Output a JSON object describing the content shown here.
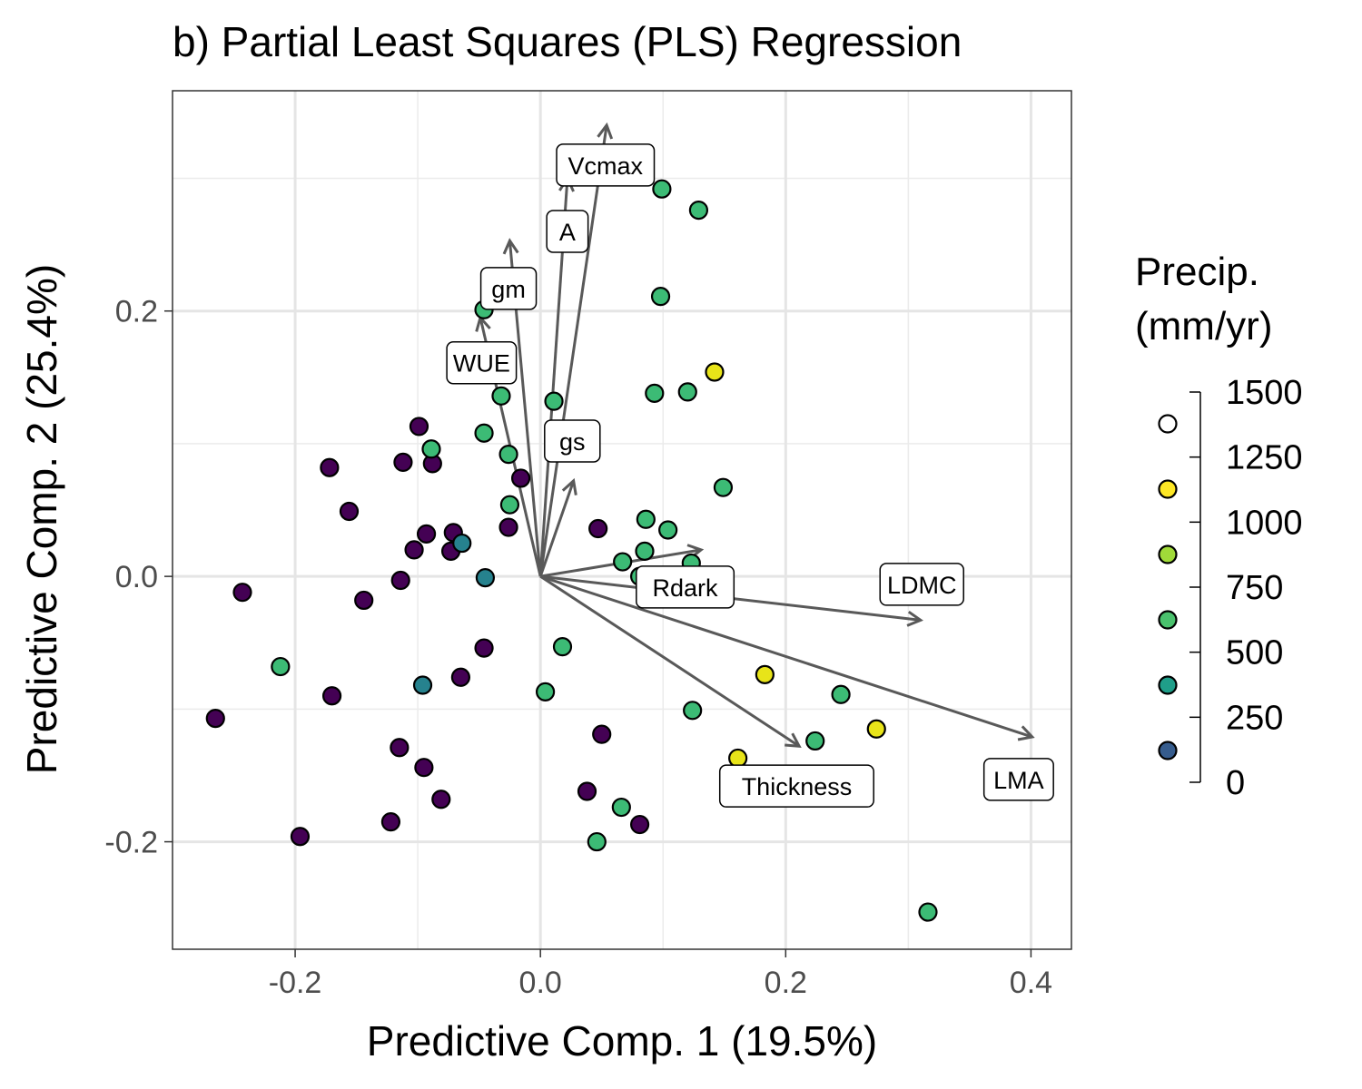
{
  "chart_data": {
    "type": "scatter",
    "title": "b) Partial Least Squares (PLS) Regression",
    "xlabel": "Predictive Comp. 1 (19.5%)",
    "ylabel": "Predictive Comp. 2 (25.4%)",
    "xlim": [
      -0.3,
      0.433
    ],
    "ylim": [
      -0.281,
      0.366
    ],
    "xticks": [
      -0.2,
      0.0,
      0.2,
      0.4
    ],
    "xtick_labels": [
      "-0.2",
      "0.0",
      "0.2",
      "0.4"
    ],
    "yticks": [
      -0.2,
      0.0,
      0.2
    ],
    "ytick_labels": [
      "-0.2",
      "0.0",
      "0.2"
    ],
    "grid": true,
    "legend": {
      "title_lines": [
        "Precip.",
        "(mm/yr)"
      ],
      "ticks": [
        "1500",
        "1250",
        "1000",
        "750",
        "500",
        "250",
        "0"
      ],
      "swatches": [
        "#ffffff",
        "#fde725",
        "#a0da39",
        "#4ac16d",
        "#1f9e89",
        "#365c8d"
      ],
      "placement": "right"
    },
    "colors": {
      "very_low": "#440154",
      "low": "#26828e",
      "mid": "#3cbb75",
      "high": "#e8e419"
    },
    "points": [
      {
        "x": -0.265,
        "y": -0.107,
        "c": "#440154"
      },
      {
        "x": -0.243,
        "y": -0.012,
        "c": "#440154"
      },
      {
        "x": -0.196,
        "y": -0.196,
        "c": "#440154"
      },
      {
        "x": -0.172,
        "y": 0.082,
        "c": "#440154"
      },
      {
        "x": -0.17,
        "y": -0.09,
        "c": "#440154"
      },
      {
        "x": -0.156,
        "y": 0.049,
        "c": "#440154"
      },
      {
        "x": -0.144,
        "y": -0.018,
        "c": "#440154"
      },
      {
        "x": -0.122,
        "y": -0.185,
        "c": "#440154"
      },
      {
        "x": -0.115,
        "y": -0.129,
        "c": "#440154"
      },
      {
        "x": -0.114,
        "y": -0.003,
        "c": "#440154"
      },
      {
        "x": -0.112,
        "y": 0.086,
        "c": "#440154"
      },
      {
        "x": -0.103,
        "y": 0.02,
        "c": "#440154"
      },
      {
        "x": -0.099,
        "y": 0.113,
        "c": "#440154"
      },
      {
        "x": -0.095,
        "y": -0.144,
        "c": "#440154"
      },
      {
        "x": -0.093,
        "y": 0.032,
        "c": "#440154"
      },
      {
        "x": -0.088,
        "y": 0.085,
        "c": "#440154"
      },
      {
        "x": -0.081,
        "y": -0.168,
        "c": "#440154"
      },
      {
        "x": -0.073,
        "y": 0.019,
        "c": "#440154"
      },
      {
        "x": -0.071,
        "y": 0.033,
        "c": "#440154"
      },
      {
        "x": -0.065,
        "y": -0.076,
        "c": "#440154"
      },
      {
        "x": -0.046,
        "y": -0.054,
        "c": "#440154"
      },
      {
        "x": -0.016,
        "y": 0.074,
        "c": "#440154"
      },
      {
        "x": -0.026,
        "y": 0.037,
        "c": "#440154"
      },
      {
        "x": 0.038,
        "y": -0.162,
        "c": "#440154"
      },
      {
        "x": 0.047,
        "y": 0.036,
        "c": "#440154"
      },
      {
        "x": 0.05,
        "y": -0.119,
        "c": "#440154"
      },
      {
        "x": 0.081,
        "y": -0.187,
        "c": "#440154"
      },
      {
        "x": -0.096,
        "y": -0.082,
        "c": "#26828e"
      },
      {
        "x": -0.064,
        "y": 0.025,
        "c": "#26828e"
      },
      {
        "x": -0.045,
        "y": -0.001,
        "c": "#26828e"
      },
      {
        "x": -0.212,
        "y": -0.068,
        "c": "#3cbb75"
      },
      {
        "x": -0.089,
        "y": 0.096,
        "c": "#3cbb75"
      },
      {
        "x": -0.046,
        "y": 0.108,
        "c": "#3cbb75"
      },
      {
        "x": -0.046,
        "y": 0.201,
        "c": "#3cbb75"
      },
      {
        "x": -0.032,
        "y": 0.136,
        "c": "#3cbb75"
      },
      {
        "x": -0.026,
        "y": 0.092,
        "c": "#3cbb75"
      },
      {
        "x": -0.025,
        "y": 0.054,
        "c": "#3cbb75"
      },
      {
        "x": 0.004,
        "y": -0.087,
        "c": "#3cbb75"
      },
      {
        "x": 0.011,
        "y": 0.132,
        "c": "#3cbb75"
      },
      {
        "x": 0.018,
        "y": -0.053,
        "c": "#3cbb75"
      },
      {
        "x": 0.046,
        "y": -0.2,
        "c": "#3cbb75"
      },
      {
        "x": 0.066,
        "y": -0.174,
        "c": "#3cbb75"
      },
      {
        "x": 0.067,
        "y": 0.011,
        "c": "#3cbb75"
      },
      {
        "x": 0.081,
        "y": 0.0,
        "c": "#3cbb75"
      },
      {
        "x": 0.086,
        "y": 0.043,
        "c": "#3cbb75"
      },
      {
        "x": 0.085,
        "y": 0.019,
        "c": "#3cbb75"
      },
      {
        "x": 0.093,
        "y": 0.138,
        "c": "#3cbb75"
      },
      {
        "x": 0.098,
        "y": 0.211,
        "c": "#3cbb75"
      },
      {
        "x": 0.099,
        "y": 0.292,
        "c": "#3cbb75"
      },
      {
        "x": 0.104,
        "y": 0.035,
        "c": "#3cbb75"
      },
      {
        "x": 0.12,
        "y": 0.139,
        "c": "#3cbb75"
      },
      {
        "x": 0.123,
        "y": 0.01,
        "c": "#3cbb75"
      },
      {
        "x": 0.124,
        "y": -0.101,
        "c": "#3cbb75"
      },
      {
        "x": 0.129,
        "y": 0.276,
        "c": "#3cbb75"
      },
      {
        "x": 0.149,
        "y": 0.067,
        "c": "#3cbb75"
      },
      {
        "x": 0.224,
        "y": -0.124,
        "c": "#3cbb75"
      },
      {
        "x": 0.245,
        "y": -0.089,
        "c": "#3cbb75"
      },
      {
        "x": 0.316,
        "y": -0.253,
        "c": "#3cbb75"
      },
      {
        "x": 0.142,
        "y": 0.154,
        "c": "#e8e419"
      },
      {
        "x": 0.183,
        "y": -0.074,
        "c": "#e8e419"
      },
      {
        "x": 0.161,
        "y": -0.137,
        "c": "#e8e419"
      },
      {
        "x": 0.274,
        "y": -0.115,
        "c": "#e8e419"
      }
    ],
    "loadings": [
      {
        "label": "Vcmax",
        "x": 0.054,
        "y": 0.34
      },
      {
        "label": "A",
        "x": 0.022,
        "y": 0.3
      },
      {
        "label": "gm",
        "x": -0.025,
        "y": 0.253
      },
      {
        "label": "WUE",
        "x": -0.049,
        "y": 0.195
      },
      {
        "label": "gs",
        "x": 0.027,
        "y": 0.072
      },
      {
        "label": "Rdark",
        "x": 0.131,
        "y": 0.02
      },
      {
        "label": "LDMC",
        "x": 0.31,
        "y": -0.033
      },
      {
        "label": "LMA",
        "x": 0.401,
        "y": -0.121
      },
      {
        "label": "Thickness",
        "x": 0.211,
        "y": -0.128
      }
    ],
    "loading_label_positions": {
      "Vcmax": {
        "x": 0.053,
        "y": 0.31
      },
      "A": {
        "x": 0.022,
        "y": 0.26
      },
      "gm": {
        "x": -0.026,
        "y": 0.217
      },
      "WUE": {
        "x": -0.048,
        "y": 0.161
      },
      "gs": {
        "x": 0.026,
        "y": 0.102
      },
      "Rdark": {
        "x": 0.118,
        "y": -0.008
      },
      "LDMC": {
        "x": 0.311,
        "y": -0.006
      },
      "LMA": {
        "x": 0.39,
        "y": -0.153
      },
      "Thickness": {
        "x": 0.209,
        "y": -0.158
      }
    }
  }
}
